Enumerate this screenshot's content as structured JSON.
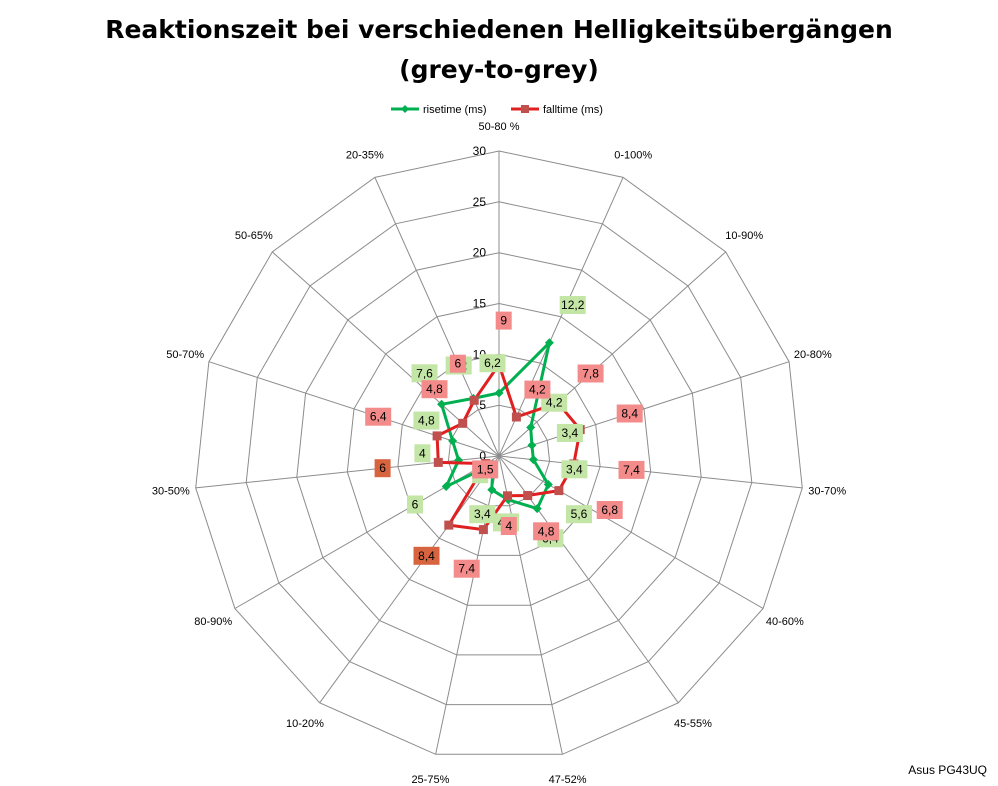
{
  "chart_data": {
    "type": "radar",
    "title": "Reaktionszeit bei verschiedenen Helligkeitsübergängen",
    "subtitle": "(grey-to-grey)",
    "categories": [
      "50-80 %",
      "0-100%",
      "10-90%",
      "20-80%",
      "30-70%",
      "40-60%",
      "45-55%",
      "47-52%",
      "25-75%",
      "10-20%",
      "80-90%",
      "30-50%",
      "50-70%",
      "50-65%",
      "20-35%"
    ],
    "rlim": [
      0,
      30
    ],
    "rticks": [
      "0",
      "5",
      "10",
      "15",
      "20",
      "25",
      "30"
    ],
    "grid": true,
    "legend_position": "top",
    "series": [
      {
        "name": "risetime (ms)",
        "color": "#00b050",
        "marker": "diamond",
        "values": [
          6.2,
          12.2,
          4.2,
          3.4,
          3.4,
          5.6,
          6.4,
          4.4,
          3.4,
          1.0,
          6.0,
          4.0,
          4.8,
          7.6,
          6.2
        ],
        "labels": [
          "6,2",
          "12,2",
          "4,2",
          "3,4",
          "3,4",
          "5,6",
          "6,4",
          "4,4",
          "3,4",
          "1",
          "6",
          "4",
          "4,8",
          "7,6",
          "6,2"
        ],
        "label_fill": "#c3e5a5"
      },
      {
        "name": "falltime (ms)",
        "color": "#e02020",
        "marker": "square",
        "values": [
          9.0,
          4.2,
          7.8,
          8.4,
          7.4,
          6.8,
          4.8,
          4.0,
          7.4,
          8.4,
          1.5,
          6.0,
          6.4,
          4.8,
          6.0
        ],
        "labels": [
          "9",
          "4,2",
          "7,8",
          "8,4",
          "7,4",
          "6,8",
          "4,8",
          "4",
          "7,4",
          "8,4",
          "1,5",
          "6",
          "6,4",
          "4,8",
          "6"
        ],
        "label_fill": "#f38b8b",
        "label_fill_dark": "#d8643f"
      }
    ]
  },
  "credit": "Asus PG43UQ"
}
